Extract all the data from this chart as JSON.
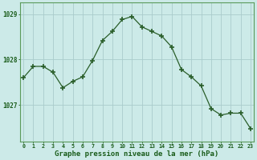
{
  "hours": [
    0,
    1,
    2,
    3,
    4,
    5,
    6,
    7,
    8,
    9,
    10,
    11,
    12,
    13,
    14,
    15,
    16,
    17,
    18,
    19,
    20,
    21,
    22,
    23
  ],
  "pressure": [
    1027.6,
    1027.85,
    1027.85,
    1027.72,
    1027.38,
    1027.52,
    1027.62,
    1027.98,
    1028.42,
    1028.62,
    1028.88,
    1028.95,
    1028.72,
    1028.62,
    1028.52,
    1028.28,
    1027.78,
    1027.62,
    1027.42,
    1026.92,
    1026.78,
    1026.82,
    1026.82,
    1026.48
  ],
  "line_color": "#2a5e2a",
  "marker_color": "#2a5e2a",
  "bg_color": "#cceae8",
  "grid_color": "#aacccc",
  "xlabel": "Graphe pression niveau de la mer (hPa)",
  "xlabel_color": "#1a5c1a",
  "tick_color": "#1a5c1a",
  "ylim_min": 1026.2,
  "ylim_max": 1029.25,
  "yticks": [
    1027,
    1028,
    1029
  ],
  "spine_color": "#5a9a5a"
}
